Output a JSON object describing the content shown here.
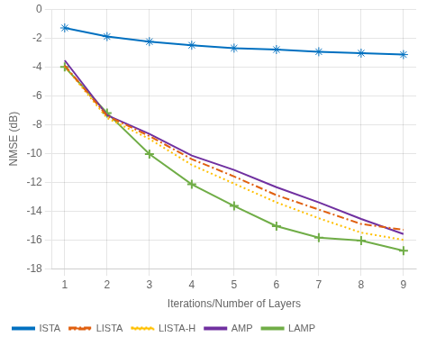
{
  "chart_data": {
    "type": "line",
    "x": [
      1,
      2,
      3,
      4,
      5,
      6,
      7,
      8,
      9
    ],
    "series": [
      {
        "name": "ISTA",
        "color": "#0070c0",
        "marker": "star",
        "line_style": "solid",
        "values": [
          -1.3,
          -1.9,
          -2.25,
          -2.5,
          -2.7,
          -2.8,
          -2.95,
          -3.05,
          -3.15
        ]
      },
      {
        "name": "LISTA",
        "color": "#e06010",
        "marker": "none",
        "line_style": "dashdot",
        "values": [
          -3.9,
          -7.4,
          -8.8,
          -10.4,
          -11.6,
          -12.9,
          -13.9,
          -14.9,
          -15.3
        ]
      },
      {
        "name": "LISTA-H",
        "color": "#ffc000",
        "marker": "none",
        "line_style": "dotted",
        "values": [
          -3.95,
          -7.55,
          -9.0,
          -10.8,
          -12.1,
          -13.4,
          -14.5,
          -15.5,
          -16.0
        ]
      },
      {
        "name": "AMP",
        "color": "#7030a0",
        "marker": "none",
        "line_style": "solid",
        "values": [
          -3.55,
          -7.35,
          -8.65,
          -10.15,
          -11.15,
          -12.35,
          -13.4,
          -14.55,
          -15.6
        ]
      },
      {
        "name": "LAMP",
        "color": "#70ad47",
        "marker": "plus",
        "line_style": "solid",
        "values": [
          -4.0,
          -7.2,
          -10.05,
          -12.15,
          -13.65,
          -15.05,
          -15.85,
          -16.05,
          -16.75
        ]
      }
    ],
    "xlabel": "Iterations/Number of Layers",
    "ylabel": "NMSE (dB)",
    "xlim": [
      0.7,
      9.3
    ],
    "ylim": [
      -18,
      0
    ],
    "xticks": [
      1,
      2,
      3,
      4,
      5,
      6,
      7,
      8,
      9
    ],
    "yticks": [
      0,
      -2,
      -4,
      -6,
      -8,
      -10,
      -12,
      -14,
      -16,
      -18
    ],
    "grid": true,
    "legend": "lower left"
  }
}
